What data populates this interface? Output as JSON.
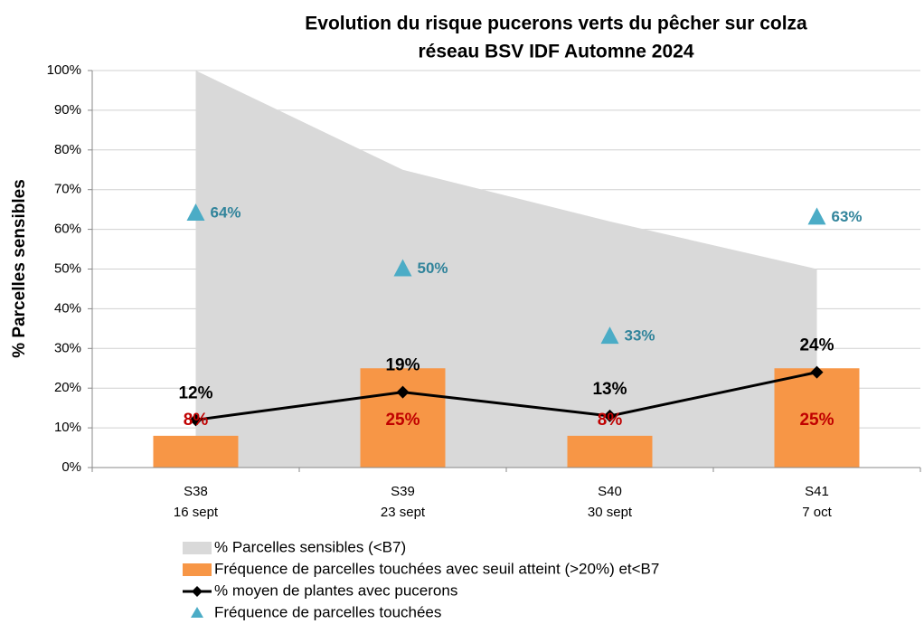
{
  "chart_data": {
    "type": "combo",
    "title": [
      "Evolution du risque pucerons verts du pêcher sur colza",
      "réseau BSV IDF Automne 2024"
    ],
    "y_label": "% Parcelles sensibles",
    "categories": [
      [
        "S38",
        "16 sept"
      ],
      [
        "S39",
        "23 sept"
      ],
      [
        "S40",
        "30 sept"
      ],
      [
        "S41",
        "7 oct"
      ]
    ],
    "ylim": [
      0,
      100
    ],
    "yticks": [
      {
        "value": 0,
        "label": "0%"
      },
      {
        "value": 10,
        "label": "10%"
      },
      {
        "value": 20,
        "label": "20%"
      },
      {
        "value": 30,
        "label": "30%"
      },
      {
        "value": 40,
        "label": "40%"
      },
      {
        "value": 50,
        "label": "50%"
      },
      {
        "value": 60,
        "label": "60%"
      },
      {
        "value": 70,
        "label": "70%"
      },
      {
        "value": 80,
        "label": "80%"
      },
      {
        "value": 90,
        "label": "90%"
      },
      {
        "value": 100,
        "label": "100%"
      }
    ],
    "grid": true,
    "series": [
      {
        "name": "% Parcelles sensibles (<B7)",
        "type": "area",
        "color": "#d9d9d9",
        "values": [
          100,
          75,
          62,
          50
        ]
      },
      {
        "name": "Fréquence de parcelles touchées avec seuil atteint (>20%) et<B7",
        "type": "bar",
        "color": "#f79646",
        "label_color": "#c00000",
        "values": [
          8,
          25,
          8,
          25
        ],
        "value_labels": [
          "8%",
          "25%",
          "8%",
          "25%"
        ]
      },
      {
        "name": "% moyen de plantes avec pucerons",
        "type": "line",
        "color": "#000000",
        "label_color": "#000000",
        "values": [
          12,
          19,
          13,
          24
        ],
        "value_labels": [
          "12%",
          "19%",
          "13%",
          "24%"
        ]
      },
      {
        "name": "Fréquence de parcelles touchées",
        "type": "scatter",
        "color": "#4bacc6",
        "label_color": "#31849b",
        "values": [
          64,
          50,
          33,
          63
        ],
        "value_labels": [
          "64%",
          "50%",
          "33%",
          "63%"
        ]
      }
    ]
  }
}
